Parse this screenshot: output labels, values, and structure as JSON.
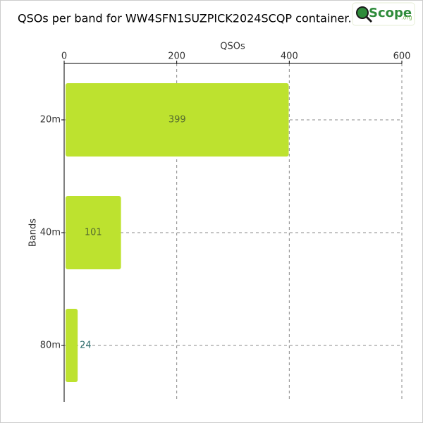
{
  "chart_data": {
    "type": "hbar",
    "title": "QSOs per band for WW4SFN1SUZPICK2024SCQP container.",
    "logo": {
      "text": "Scope",
      "suffix": ".org"
    },
    "xlabel": "QSOs",
    "ylabel": "Bands",
    "categories": [
      "20m",
      "40m",
      "80m"
    ],
    "values": [
      399,
      101,
      24
    ],
    "color": "#bde22f",
    "xlim": [
      0,
      600
    ],
    "xticks": [
      0,
      200,
      400,
      600
    ],
    "grid": true
  }
}
